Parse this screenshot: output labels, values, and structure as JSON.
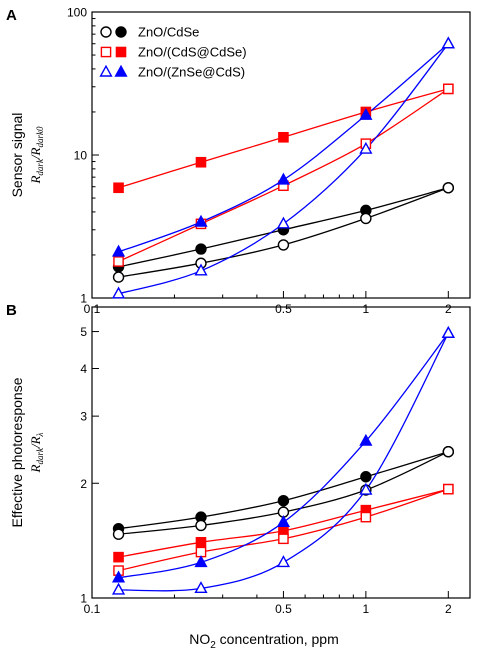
{
  "figure": {
    "xlabel_prefix": "NO",
    "xlabel_sub": "2",
    "xlabel_suffix": " concentration, ppm"
  },
  "chart_data": [
    {
      "panel": "A",
      "type": "line",
      "x_scale": "log",
      "y_scale": "log",
      "xlim": [
        0.1,
        2.4
      ],
      "ylim": [
        1,
        100
      ],
      "xticks": [
        0.1,
        0.5,
        1,
        2
      ],
      "xtick_labels": [
        "0.1",
        "0.5",
        "1",
        "2"
      ],
      "yticks": [
        1,
        10,
        100
      ],
      "ytick_labels": [
        "1",
        "10",
        "100"
      ],
      "ylabel_line1": "Sensor signal",
      "ylabel_line2": {
        "base": "R",
        "sub1": "dark",
        "slash": "/R",
        "sub2": "dark0"
      },
      "legend": {
        "placement": "top-left",
        "entries": [
          "ZnO/CdSe",
          "ZnO/(CdS@CdSe)",
          "ZnO/(ZnSe@CdS)"
        ]
      },
      "x": [
        0.125,
        0.25,
        0.5,
        1,
        2
      ],
      "series": [
        {
          "name": "ZnO/CdSe",
          "color": "#000000",
          "marker": "circle",
          "filled": true,
          "values": [
            1.65,
            2.2,
            3.0,
            4.1,
            5.9
          ]
        },
        {
          "name": "ZnO/CdSe",
          "color": "#000000",
          "marker": "circle",
          "filled": false,
          "values": [
            1.4,
            1.75,
            2.35,
            3.6,
            5.9
          ]
        },
        {
          "name": "ZnO/(CdS@CdSe)",
          "color": "#ff0000",
          "marker": "square",
          "filled": true,
          "values": [
            5.9,
            8.9,
            13.3,
            20.0,
            29.0
          ]
        },
        {
          "name": "ZnO/(CdS@CdSe)",
          "color": "#ff0000",
          "marker": "square",
          "filled": false,
          "values": [
            1.8,
            3.3,
            6.1,
            12.0,
            29.0
          ]
        },
        {
          "name": "ZnO/(ZnSe@CdS)",
          "color": "#0000ff",
          "marker": "triangle",
          "filled": true,
          "values": [
            2.1,
            3.4,
            6.7,
            19.0,
            60.0
          ]
        },
        {
          "name": "ZnO/(ZnSe@CdS)",
          "color": "#0000ff",
          "marker": "triangle",
          "filled": false,
          "values": [
            1.07,
            1.55,
            3.3,
            11.0,
            60.0
          ]
        }
      ]
    },
    {
      "panel": "B",
      "type": "line",
      "x_scale": "log",
      "y_scale": "log",
      "xlim": [
        0.1,
        2.4
      ],
      "ylim": [
        1,
        5.8
      ],
      "xticks": [
        0.1,
        0.5,
        1,
        2
      ],
      "xtick_labels": [
        "0.1",
        "0.5",
        "1",
        "2"
      ],
      "yticks": [
        1,
        2,
        3,
        4,
        5
      ],
      "ytick_labels": [
        "1",
        "2",
        "3",
        "4",
        "5"
      ],
      "ylabel_line1": "Effective photoresponse",
      "ylabel_line2": {
        "base": "R",
        "sub1": "dark",
        "slash": "/R",
        "sub2": "λ"
      },
      "x": [
        0.125,
        0.25,
        0.5,
        1,
        2
      ],
      "series": [
        {
          "name": "ZnO/CdSe",
          "color": "#000000",
          "marker": "circle",
          "filled": true,
          "values": [
            1.52,
            1.63,
            1.8,
            2.08,
            2.42
          ]
        },
        {
          "name": "ZnO/CdSe",
          "color": "#000000",
          "marker": "circle",
          "filled": false,
          "values": [
            1.47,
            1.55,
            1.68,
            1.92,
            2.42
          ]
        },
        {
          "name": "ZnO/(CdS@CdSe)",
          "color": "#ff0000",
          "marker": "square",
          "filled": true,
          "values": [
            1.28,
            1.4,
            1.5,
            1.7,
            1.93
          ]
        },
        {
          "name": "ZnO/(CdS@CdSe)",
          "color": "#ff0000",
          "marker": "square",
          "filled": false,
          "values": [
            1.18,
            1.32,
            1.43,
            1.63,
            1.93
          ]
        },
        {
          "name": "ZnO/(ZnSe@CdS)",
          "color": "#0000ff",
          "marker": "triangle",
          "filled": true,
          "values": [
            1.13,
            1.24,
            1.58,
            2.58,
            4.95
          ]
        },
        {
          "name": "ZnO/(ZnSe@CdS)",
          "color": "#0000ff",
          "marker": "triangle",
          "filled": false,
          "values": [
            1.05,
            1.06,
            1.24,
            1.92,
            4.95
          ]
        }
      ]
    }
  ]
}
